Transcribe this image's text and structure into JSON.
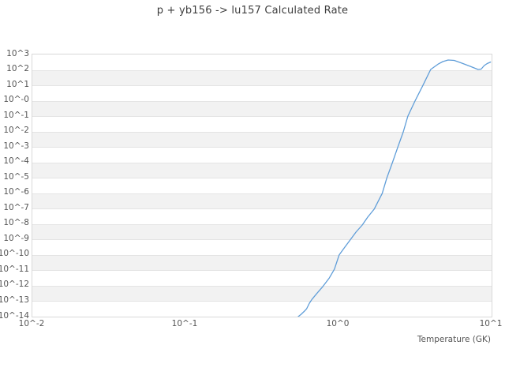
{
  "title": "p + yb156 -> lu157 Calculated Rate",
  "x_axis": {
    "label": "Temperature (GK)",
    "ticks": [
      "10^-2",
      "10^-1",
      "10^0",
      "10^1"
    ]
  },
  "y_axis": {
    "ticks": [
      "10^3",
      "10^2",
      "10^1",
      "10^-0",
      "10^-1",
      "10^-2",
      "10^-3",
      "10^-4",
      "10^-5",
      "10^-6",
      "10^-7",
      "10^-8",
      "10^-9",
      "10^-10",
      "10^-11",
      "10^-12",
      "10^-13",
      "10^-14"
    ]
  },
  "colors": {
    "line": "#5f9dd8",
    "band_fill": "#f2f2f2",
    "gridline": "#e4e4e4",
    "plot_border": "#d8d8d8",
    "tick_text": "#555555",
    "title_text": "#3d3d3d",
    "background": "#ffffff"
  },
  "chart_data": {
    "type": "line",
    "title": "p + yb156 -> lu157 Calculated Rate",
    "xlabel": "Temperature (GK)",
    "ylabel": "",
    "x_scale": "log",
    "y_scale": "log",
    "xlim": [
      0.01,
      10
    ],
    "ylim": [
      1e-14,
      1000
    ],
    "grid": "horizontal-decade-bands",
    "legend_position": "none",
    "series": [
      {
        "name": "calculated rate",
        "color": "#5f9dd8",
        "points": [
          [
            0.545,
            1e-14
          ],
          [
            0.57,
            1.4e-14
          ],
          [
            0.6,
            2.3e-14
          ],
          [
            0.62,
            3.3e-14
          ],
          [
            0.645,
            7.4e-14
          ],
          [
            0.67,
            1.3e-13
          ],
          [
            0.72,
            3.1e-13
          ],
          [
            0.79,
            8.9e-13
          ],
          [
            0.87,
            3.2e-12
          ],
          [
            0.94,
            1.2e-11
          ],
          [
            1.01,
            1e-10
          ],
          [
            1.1,
            3.2e-10
          ],
          [
            1.19,
            9.3e-10
          ],
          [
            1.3,
            3e-09
          ],
          [
            1.43,
            8.7e-09
          ],
          [
            1.55,
            2.8e-08
          ],
          [
            1.71,
            9.3e-08
          ],
          [
            1.93,
            9.8e-07
          ],
          [
            2.07,
            1e-05
          ],
          [
            2.25,
            9.7e-05
          ],
          [
            2.44,
            0.001
          ],
          [
            2.65,
            0.0096
          ],
          [
            2.84,
            0.1
          ],
          [
            3.16,
            0.95
          ],
          [
            3.56,
            10
          ],
          [
            4.0,
            107
          ],
          [
            4.5,
            245
          ],
          [
            4.8,
            347
          ],
          [
            5.2,
            437
          ],
          [
            5.7,
            414
          ],
          [
            6.4,
            273
          ],
          [
            7.25,
            170
          ],
          [
            8.16,
            107
          ],
          [
            8.55,
            113
          ],
          [
            8.95,
            192
          ],
          [
            9.36,
            257
          ],
          [
            9.85,
            324
          ]
        ]
      }
    ]
  }
}
